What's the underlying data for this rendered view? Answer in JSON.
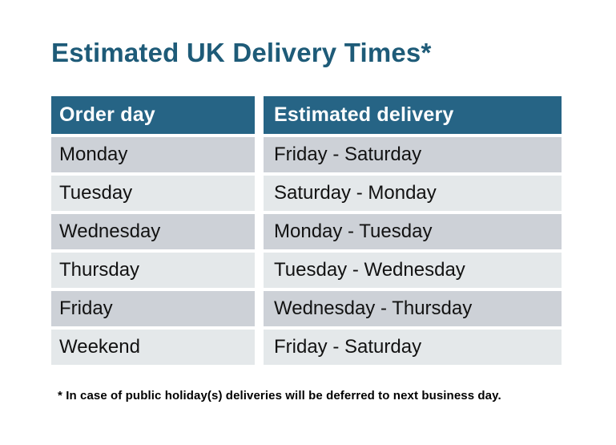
{
  "title": "Estimated UK Delivery Times*",
  "table": {
    "columns": [
      "Order day",
      "Estimated delivery"
    ],
    "rows": [
      {
        "order_day": "Monday",
        "estimated_delivery": "Friday - Saturday"
      },
      {
        "order_day": "Tuesday",
        "estimated_delivery": "Saturday - Monday"
      },
      {
        "order_day": "Wednesday",
        "estimated_delivery": "Monday - Tuesday"
      },
      {
        "order_day": "Thursday",
        "estimated_delivery": "Tuesday - Wednesday"
      },
      {
        "order_day": "Friday",
        "estimated_delivery": "Wednesday - Thursday"
      },
      {
        "order_day": "Weekend",
        "estimated_delivery": "Friday - Saturday"
      }
    ]
  },
  "footnote": "* In case of public holiday(s) deliveries will be deferred to next business day.",
  "colors": {
    "title_color": "#1E5B78",
    "header_bg": "#266485",
    "header_text": "#FFFFFF",
    "row_dark": "#CDD1D7",
    "row_light": "#E4E8EA",
    "cell_text": "#121212",
    "footnote_color": "#000000",
    "page_bg": "#FFFFFF"
  }
}
